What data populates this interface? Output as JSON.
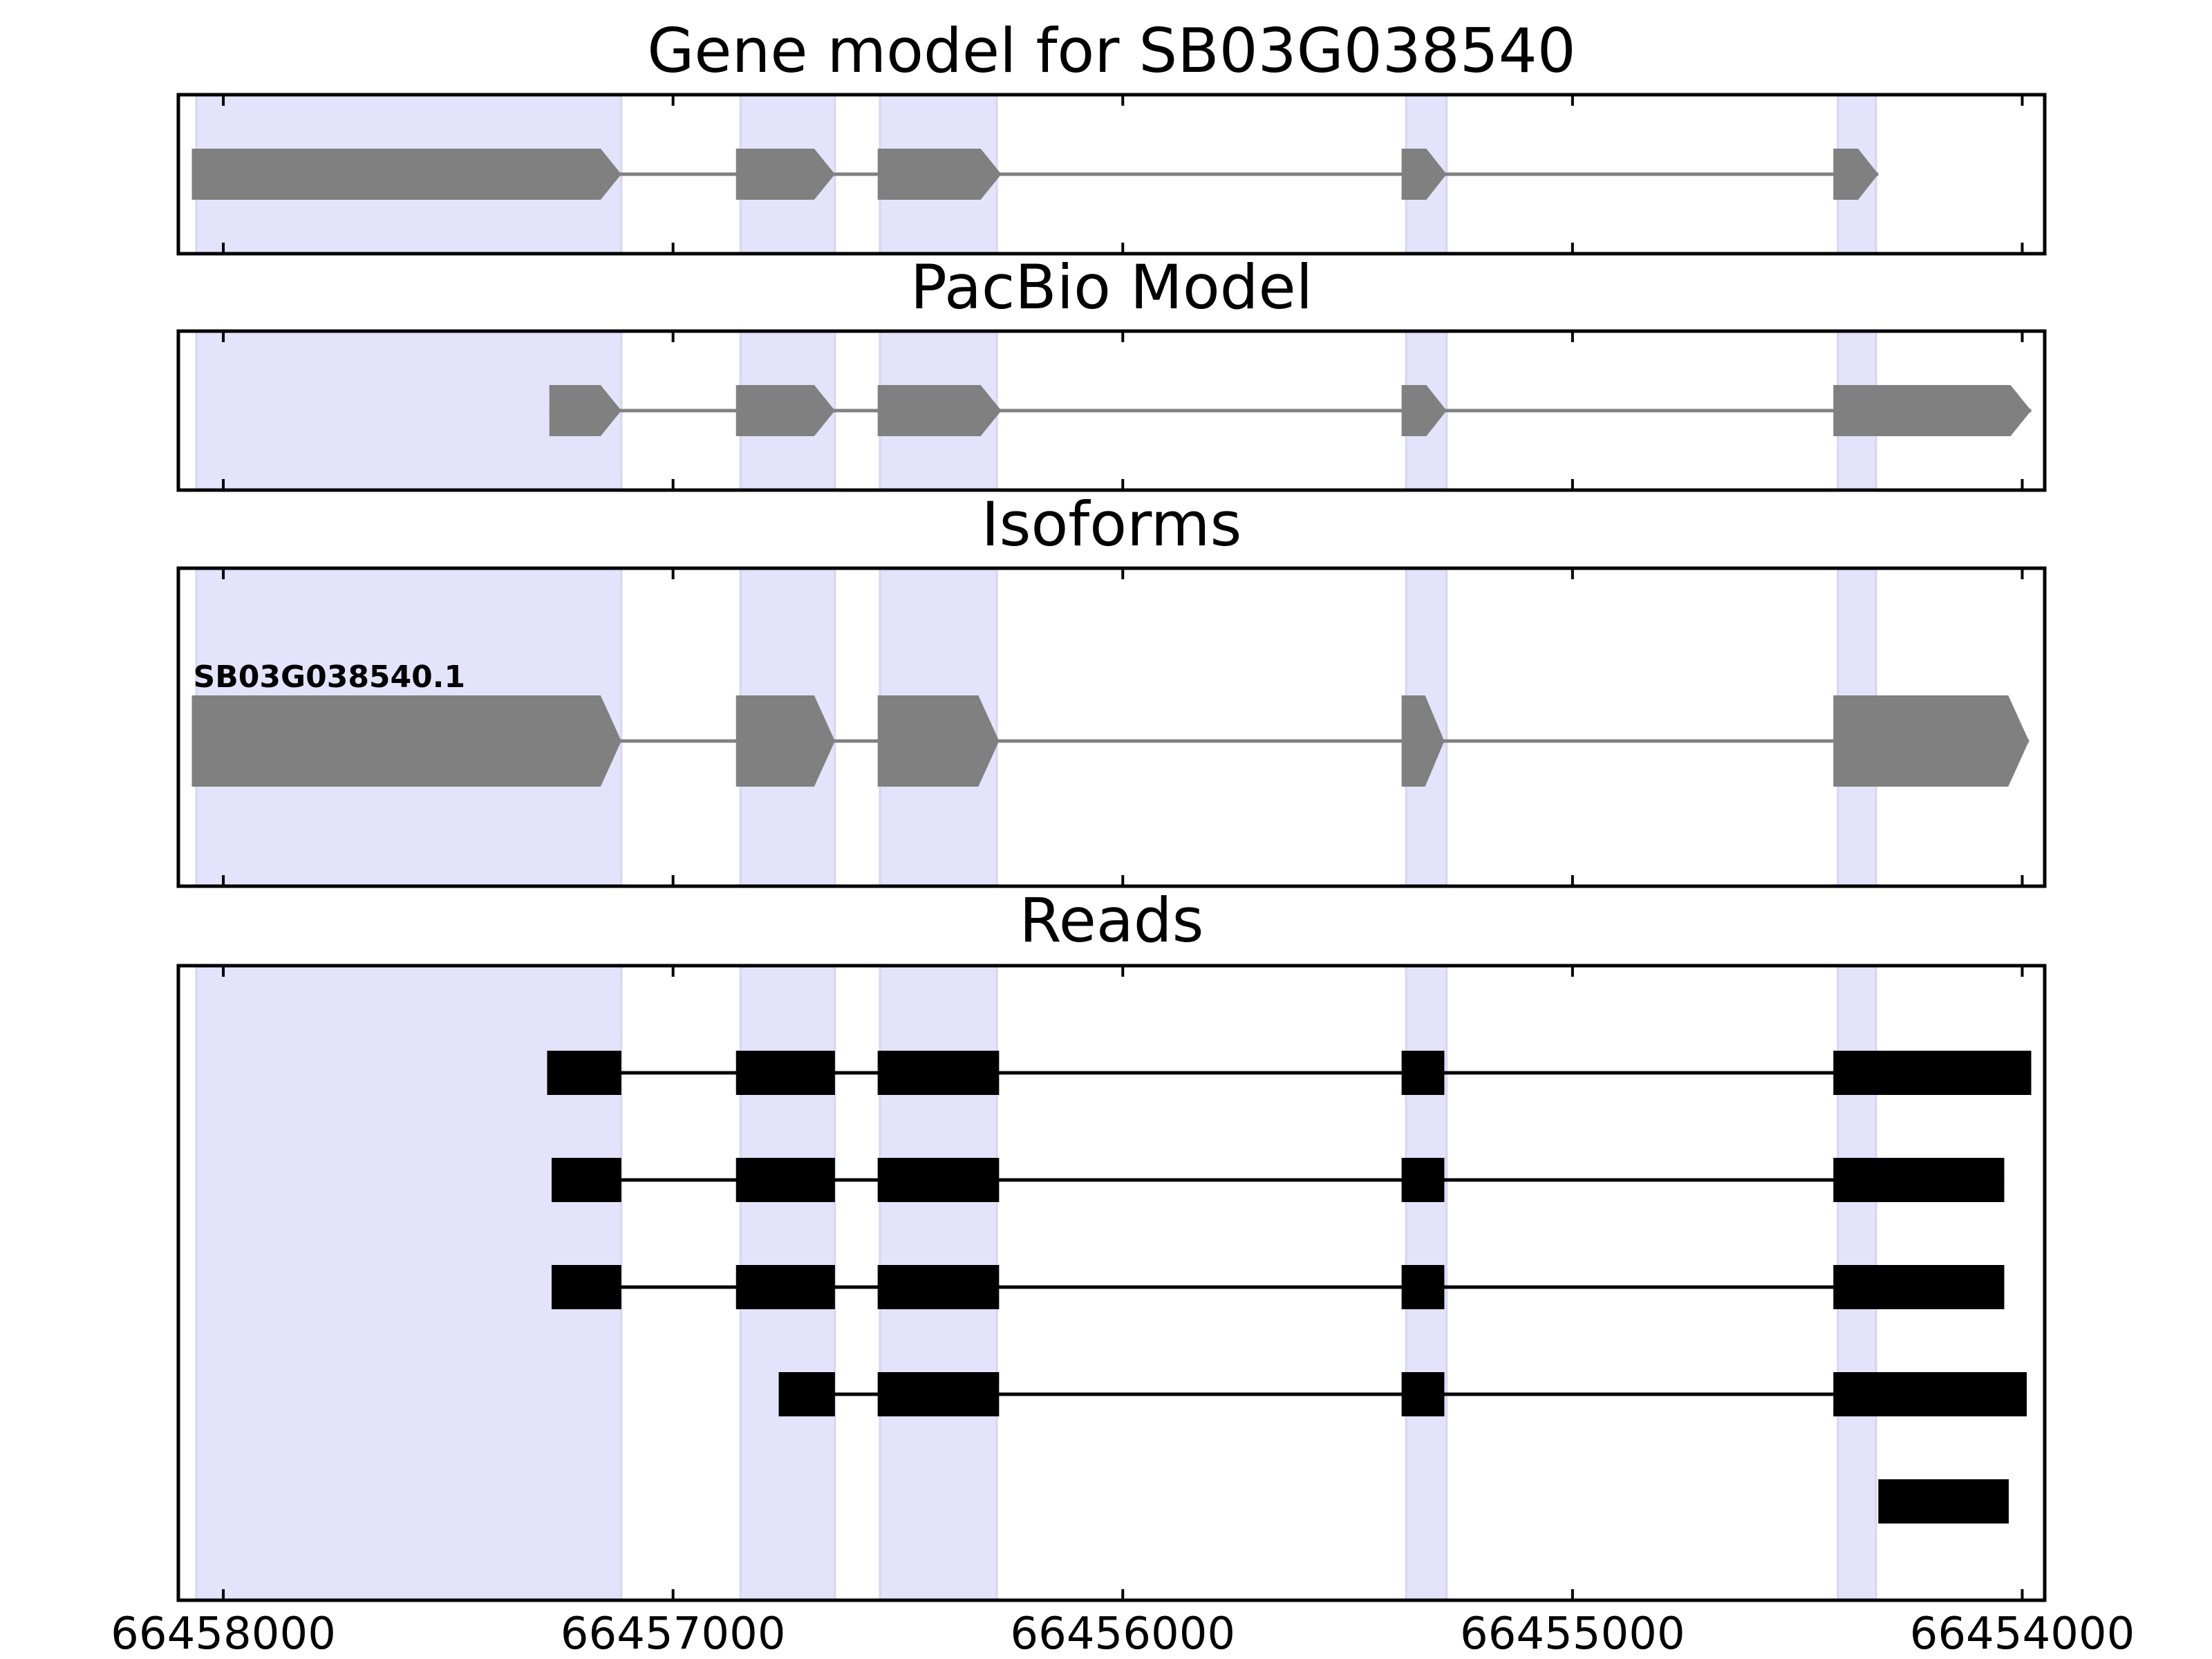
{
  "chart_data": {
    "type": "gene_structure",
    "x_axis": {
      "ticks": [
        66458000,
        66457000,
        66456000,
        66455000,
        66454000
      ],
      "tick_labels": [
        "66458000",
        "66457000",
        "66456000",
        "66455000",
        "66454000"
      ],
      "range": [
        66458100,
        66453950
      ],
      "direction": "reversed"
    },
    "highlight_color": "#e3e3fb",
    "highlight_regions": [
      [
        66458060,
        66457115
      ],
      [
        66456850,
        66456640
      ],
      [
        66456540,
        66456280
      ],
      [
        66455370,
        66455280
      ],
      [
        66454410,
        66454325
      ]
    ],
    "panels": [
      {
        "title": "Gene model for SB03G038540",
        "color": "#808080",
        "models": [
          {
            "label": "",
            "strand": "-",
            "exons": [
              [
                66458070,
                66457115
              ],
              [
                66456860,
                66456640
              ],
              [
                66456545,
                66456270
              ],
              [
                66455380,
                66455280
              ],
              [
                66454420,
                66454320
              ]
            ]
          }
        ]
      },
      {
        "title": "PacBio Model",
        "color": "#808080",
        "models": [
          {
            "label": "",
            "strand": "-",
            "exons": [
              [
                66457275,
                66457115
              ],
              [
                66456860,
                66456640
              ],
              [
                66456545,
                66456270
              ],
              [
                66455380,
                66455280
              ],
              [
                66454420,
                66453980
              ]
            ]
          }
        ]
      },
      {
        "title": "Isoforms",
        "color": "#808080",
        "models": [
          {
            "label": "SB03G038540.1",
            "strand": "-",
            "exons": [
              [
                66458070,
                66457115
              ],
              [
                66456860,
                66456640
              ],
              [
                66456545,
                66456275
              ],
              [
                66455380,
                66455285
              ],
              [
                66454420,
                66453985
              ]
            ]
          }
        ]
      },
      {
        "title": "Reads",
        "color": "#000000",
        "reads": [
          [
            [
              66457280,
              66457115
            ],
            [
              66456860,
              66456640
            ],
            [
              66456545,
              66456275
            ],
            [
              66455380,
              66455285
            ],
            [
              66454420,
              66453980
            ]
          ],
          [
            [
              66457270,
              66457115
            ],
            [
              66456860,
              66456640
            ],
            [
              66456545,
              66456275
            ],
            [
              66455380,
              66455285
            ],
            [
              66454420,
              66454040
            ]
          ],
          [
            [
              66457270,
              66457115
            ],
            [
              66456860,
              66456640
            ],
            [
              66456545,
              66456275
            ],
            [
              66455380,
              66455285
            ],
            [
              66454420,
              66454040
            ]
          ],
          [
            [
              66456765,
              66456640
            ],
            [
              66456545,
              66456275
            ],
            [
              66455380,
              66455285
            ],
            [
              66454420,
              66453990
            ]
          ],
          [
            [
              66454320,
              66454030
            ]
          ]
        ]
      }
    ]
  }
}
